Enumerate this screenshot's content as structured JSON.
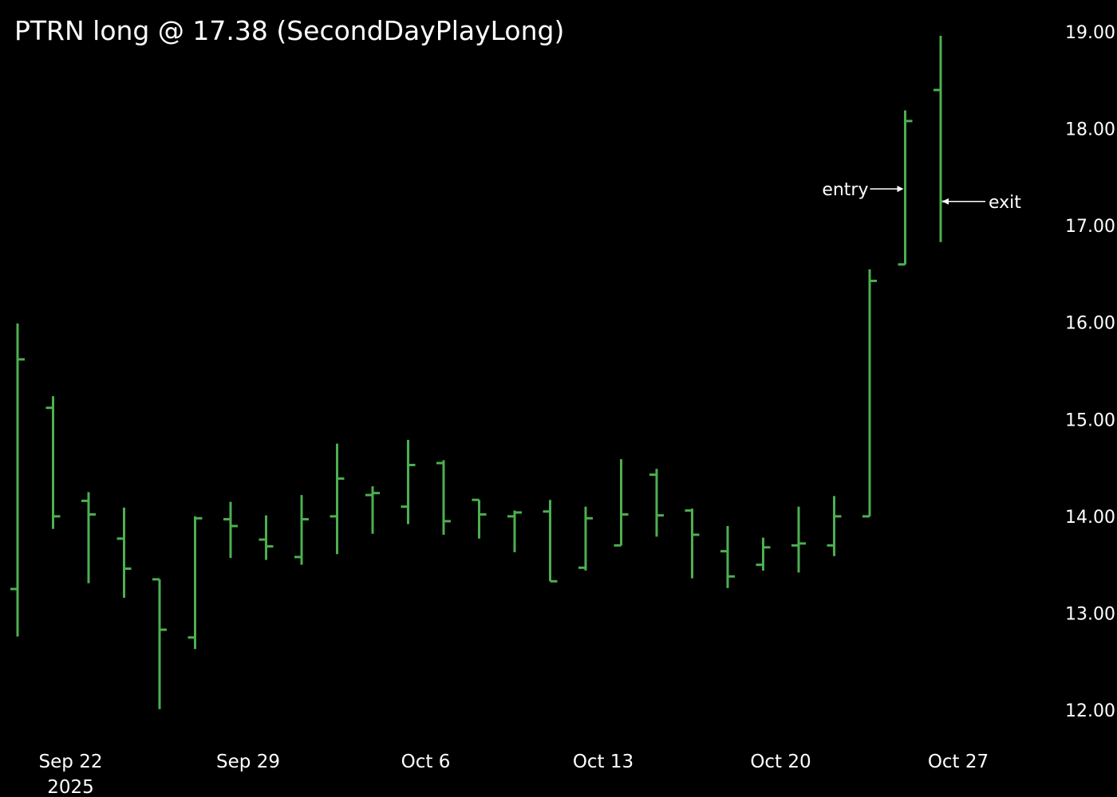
{
  "chart_data": {
    "type": "ohlc",
    "title": "PTRN long @ 17.38 (SecondDayPlayLong)",
    "bar_color": "#4caf50",
    "text_color": "#ffffff",
    "background": "#000000",
    "ylim": [
      11.83,
      19.05
    ],
    "y_ticks": [
      19,
      18,
      17,
      16,
      15,
      14,
      13,
      12
    ],
    "y_tick_labels": [
      "19.00",
      "18.00",
      "17.00",
      "16.00",
      "15.00",
      "14.00",
      "13.00",
      "12.00"
    ],
    "x_ticks": [
      {
        "index": 1,
        "label": "Sep 22",
        "sublabel": "2025"
      },
      {
        "index": 6,
        "label": "Sep 29",
        "sublabel": ""
      },
      {
        "index": 11,
        "label": "Oct 6",
        "sublabel": ""
      },
      {
        "index": 16,
        "label": "Oct 13",
        "sublabel": ""
      },
      {
        "index": 21,
        "label": "Oct 20",
        "sublabel": ""
      },
      {
        "index": 26,
        "label": "Oct 27",
        "sublabel": ""
      }
    ],
    "bars": [
      {
        "o": 13.25,
        "h": 15.99,
        "l": 12.76,
        "c": 15.62
      },
      {
        "o": 15.12,
        "h": 15.24,
        "l": 13.87,
        "c": 14.0
      },
      {
        "o": 14.16,
        "h": 14.25,
        "l": 13.31,
        "c": 14.02
      },
      {
        "o": 13.77,
        "h": 14.09,
        "l": 13.16,
        "c": 13.46
      },
      {
        "o": 13.35,
        "h": 13.35,
        "l": 12.01,
        "c": 12.83
      },
      {
        "o": 12.75,
        "h": 14.0,
        "l": 12.63,
        "c": 13.98
      },
      {
        "o": 13.97,
        "h": 14.15,
        "l": 13.57,
        "c": 13.9
      },
      {
        "o": 13.76,
        "h": 14.01,
        "l": 13.55,
        "c": 13.69
      },
      {
        "o": 13.58,
        "h": 14.22,
        "l": 13.5,
        "c": 13.97
      },
      {
        "o": 14.0,
        "h": 14.75,
        "l": 13.61,
        "c": 14.39
      },
      {
        "o": 14.22,
        "h": 14.31,
        "l": 13.82,
        "c": 14.24
      },
      {
        "o": 14.1,
        "h": 14.79,
        "l": 13.92,
        "c": 14.53
      },
      {
        "o": 14.55,
        "h": 14.58,
        "l": 13.81,
        "c": 13.95
      },
      {
        "o": 14.17,
        "h": 14.17,
        "l": 13.77,
        "c": 14.02
      },
      {
        "o": 14.0,
        "h": 14.06,
        "l": 13.63,
        "c": 14.04
      },
      {
        "o": 14.05,
        "h": 14.17,
        "l": 13.33,
        "c": 13.33
      },
      {
        "o": 13.47,
        "h": 14.1,
        "l": 13.44,
        "c": 13.98
      },
      {
        "o": 13.7,
        "h": 14.59,
        "l": 13.7,
        "c": 14.02
      },
      {
        "o": 14.43,
        "h": 14.49,
        "l": 13.79,
        "c": 14.01
      },
      {
        "o": 14.06,
        "h": 14.08,
        "l": 13.36,
        "c": 13.81
      },
      {
        "o": 13.64,
        "h": 13.9,
        "l": 13.26,
        "c": 13.38
      },
      {
        "o": 13.5,
        "h": 13.78,
        "l": 13.44,
        "c": 13.68
      },
      {
        "o": 13.7,
        "h": 14.1,
        "l": 13.42,
        "c": 13.72
      },
      {
        "o": 13.7,
        "h": 14.21,
        "l": 13.59,
        "c": 14.0
      },
      {
        "o": 14.0,
        "h": 16.55,
        "l": 14.0,
        "c": 16.43
      },
      {
        "o": 16.6,
        "h": 18.19,
        "l": 16.6,
        "c": 18.08
      },
      {
        "o": 18.4,
        "h": 18.96,
        "l": 16.83,
        "c": 17.25
      }
    ],
    "annotations": [
      {
        "label": "entry",
        "bar_index": 25,
        "y": 17.38
      },
      {
        "label": "exit",
        "bar_index": 26,
        "y": 17.25
      }
    ]
  }
}
